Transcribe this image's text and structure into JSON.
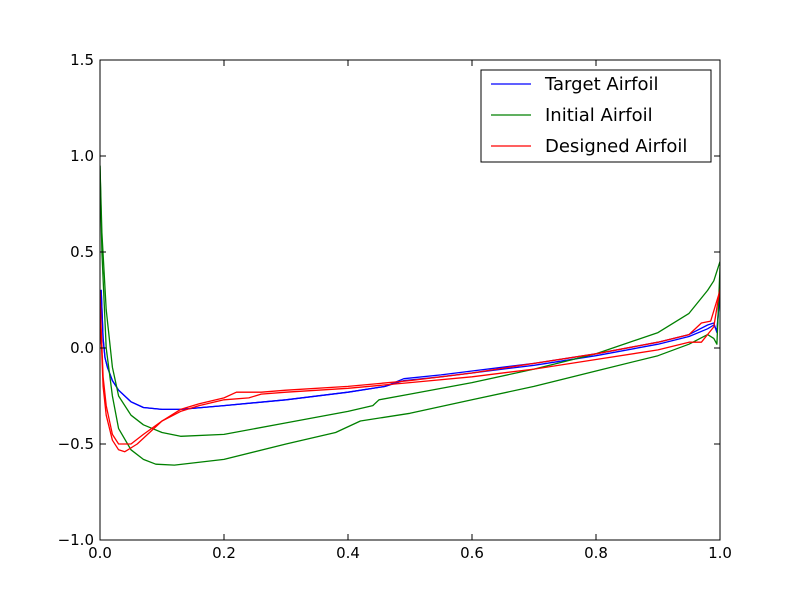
{
  "chart_data": {
    "type": "line",
    "title": "",
    "xlabel": "",
    "ylabel": "",
    "xlim": [
      0.0,
      1.0
    ],
    "ylim": [
      -1.0,
      1.5
    ],
    "x_ticks": [
      "0.0",
      "0.2",
      "0.4",
      "0.6",
      "0.8",
      "1.0"
    ],
    "y_ticks": [
      "−1.0",
      "−0.5",
      "0.0",
      "0.5",
      "1.0",
      "1.5"
    ],
    "grid": false,
    "legend_position": "top-right",
    "series": [
      {
        "name": "Target Airfoil",
        "color": "#0000ff",
        "upper": [
          [
            0.0,
            0.02
          ],
          [
            0.002,
            0.3
          ],
          [
            0.005,
            0.05
          ],
          [
            0.008,
            -0.05
          ],
          [
            0.012,
            -0.1
          ],
          [
            0.02,
            -0.17
          ],
          [
            0.03,
            -0.22
          ],
          [
            0.05,
            -0.28
          ],
          [
            0.07,
            -0.31
          ],
          [
            0.1,
            -0.32
          ],
          [
            0.13,
            -0.32
          ],
          [
            0.2,
            -0.3
          ],
          [
            0.3,
            -0.27
          ],
          [
            0.4,
            -0.23
          ],
          [
            0.46,
            -0.2
          ],
          [
            0.49,
            -0.16
          ],
          [
            0.55,
            -0.14
          ],
          [
            0.6,
            -0.12
          ],
          [
            0.7,
            -0.08
          ],
          [
            0.8,
            -0.03
          ],
          [
            0.9,
            0.03
          ],
          [
            0.95,
            0.07
          ],
          [
            0.98,
            0.12
          ],
          [
            0.99,
            0.13
          ],
          [
            0.995,
            0.08
          ],
          [
            1.0,
            0.3
          ]
        ],
        "lower": [
          [
            0.0,
            0.02
          ],
          [
            0.002,
            0.3
          ],
          [
            0.005,
            0.05
          ],
          [
            0.008,
            -0.05
          ],
          [
            0.012,
            -0.1
          ],
          [
            0.02,
            -0.17
          ],
          [
            0.03,
            -0.22
          ],
          [
            0.05,
            -0.28
          ],
          [
            0.07,
            -0.31
          ],
          [
            0.1,
            -0.32
          ],
          [
            0.13,
            -0.32
          ],
          [
            0.2,
            -0.3
          ],
          [
            0.3,
            -0.27
          ],
          [
            0.4,
            -0.23
          ],
          [
            0.46,
            -0.2
          ],
          [
            0.49,
            -0.17
          ],
          [
            0.55,
            -0.15
          ],
          [
            0.6,
            -0.13
          ],
          [
            0.7,
            -0.09
          ],
          [
            0.8,
            -0.04
          ],
          [
            0.9,
            0.02
          ],
          [
            0.95,
            0.06
          ],
          [
            0.98,
            0.1
          ],
          [
            0.99,
            0.12
          ],
          [
            0.995,
            0.09
          ],
          [
            1.0,
            0.3
          ]
        ]
      },
      {
        "name": "Initial Airfoil",
        "color": "#008000",
        "upper": [
          [
            0.0,
            0.95
          ],
          [
            0.003,
            0.6
          ],
          [
            0.01,
            0.2
          ],
          [
            0.02,
            -0.1
          ],
          [
            0.03,
            -0.25
          ],
          [
            0.05,
            -0.35
          ],
          [
            0.07,
            -0.4
          ],
          [
            0.1,
            -0.44
          ],
          [
            0.13,
            -0.46
          ],
          [
            0.2,
            -0.45
          ],
          [
            0.3,
            -0.39
          ],
          [
            0.4,
            -0.33
          ],
          [
            0.44,
            -0.3
          ],
          [
            0.45,
            -0.27
          ],
          [
            0.5,
            -0.24
          ],
          [
            0.6,
            -0.18
          ],
          [
            0.7,
            -0.11
          ],
          [
            0.8,
            -0.03
          ],
          [
            0.9,
            0.08
          ],
          [
            0.95,
            0.18
          ],
          [
            0.98,
            0.3
          ],
          [
            0.99,
            0.35
          ],
          [
            1.0,
            0.45
          ]
        ],
        "lower": [
          [
            0.0,
            0.95
          ],
          [
            0.003,
            0.5
          ],
          [
            0.01,
            0.0
          ],
          [
            0.02,
            -0.25
          ],
          [
            0.03,
            -0.42
          ],
          [
            0.05,
            -0.53
          ],
          [
            0.07,
            -0.58
          ],
          [
            0.09,
            -0.605
          ],
          [
            0.12,
            -0.61
          ],
          [
            0.2,
            -0.58
          ],
          [
            0.3,
            -0.5
          ],
          [
            0.38,
            -0.44
          ],
          [
            0.42,
            -0.38
          ],
          [
            0.5,
            -0.34
          ],
          [
            0.6,
            -0.27
          ],
          [
            0.7,
            -0.2
          ],
          [
            0.8,
            -0.12
          ],
          [
            0.9,
            -0.04
          ],
          [
            0.95,
            0.02
          ],
          [
            0.98,
            0.07
          ],
          [
            0.99,
            0.05
          ],
          [
            0.995,
            0.02
          ],
          [
            1.0,
            0.42
          ]
        ]
      },
      {
        "name": "Designed Airfoil",
        "color": "#ff0000",
        "upper": [
          [
            0.0,
            0.3
          ],
          [
            0.002,
            0.1
          ],
          [
            0.005,
            -0.15
          ],
          [
            0.01,
            -0.3
          ],
          [
            0.02,
            -0.45
          ],
          [
            0.03,
            -0.5
          ],
          [
            0.05,
            -0.5
          ],
          [
            0.07,
            -0.45
          ],
          [
            0.1,
            -0.38
          ],
          [
            0.13,
            -0.32
          ],
          [
            0.16,
            -0.29
          ],
          [
            0.2,
            -0.26
          ],
          [
            0.22,
            -0.23
          ],
          [
            0.26,
            -0.23
          ],
          [
            0.3,
            -0.22
          ],
          [
            0.4,
            -0.2
          ],
          [
            0.5,
            -0.17
          ],
          [
            0.6,
            -0.13
          ],
          [
            0.7,
            -0.08
          ],
          [
            0.8,
            -0.03
          ],
          [
            0.9,
            0.03
          ],
          [
            0.95,
            0.07
          ],
          [
            0.97,
            0.13
          ],
          [
            0.985,
            0.14
          ],
          [
            1.0,
            0.3
          ]
        ],
        "lower": [
          [
            0.0,
            0.3
          ],
          [
            0.002,
            0.05
          ],
          [
            0.005,
            -0.2
          ],
          [
            0.01,
            -0.35
          ],
          [
            0.02,
            -0.48
          ],
          [
            0.03,
            -0.53
          ],
          [
            0.04,
            -0.54
          ],
          [
            0.06,
            -0.5
          ],
          [
            0.08,
            -0.44
          ],
          [
            0.1,
            -0.38
          ],
          [
            0.13,
            -0.33
          ],
          [
            0.16,
            -0.3
          ],
          [
            0.2,
            -0.27
          ],
          [
            0.24,
            -0.26
          ],
          [
            0.26,
            -0.24
          ],
          [
            0.3,
            -0.23
          ],
          [
            0.4,
            -0.21
          ],
          [
            0.5,
            -0.18
          ],
          [
            0.6,
            -0.15
          ],
          [
            0.7,
            -0.11
          ],
          [
            0.8,
            -0.06
          ],
          [
            0.9,
            -0.01
          ],
          [
            0.95,
            0.03
          ],
          [
            0.97,
            0.03
          ],
          [
            0.99,
            0.11
          ],
          [
            1.0,
            0.31
          ]
        ]
      }
    ]
  }
}
